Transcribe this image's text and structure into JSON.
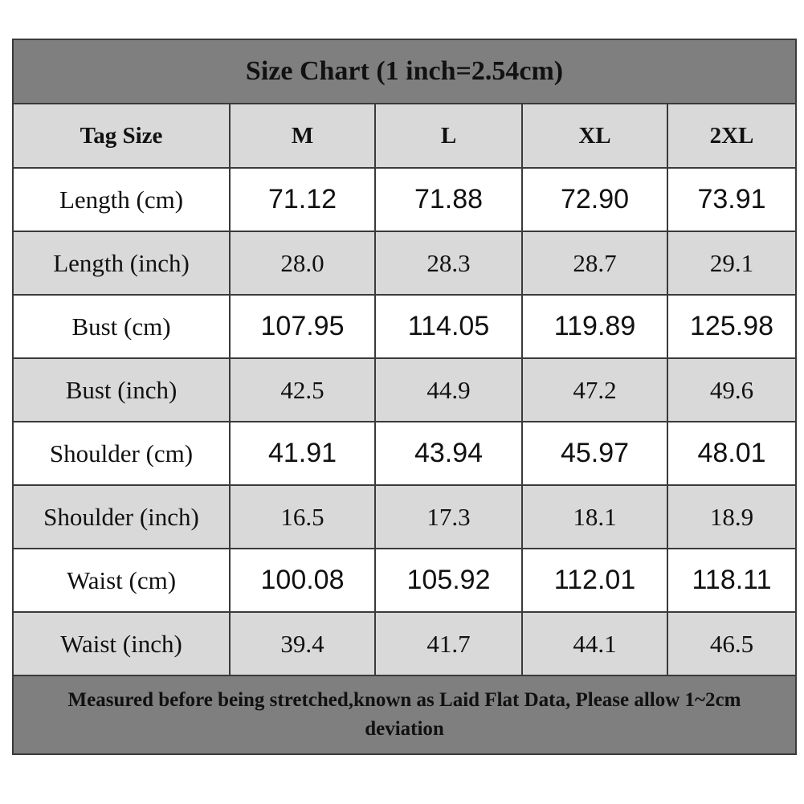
{
  "header": {
    "title": "Size Chart (1 inch=2.54cm)"
  },
  "table": {
    "columns": [
      "Tag Size",
      "M",
      "L",
      "XL",
      "2XL"
    ],
    "rows": [
      [
        "Length (cm)",
        "71.12",
        "71.88",
        "72.90",
        "73.91"
      ],
      [
        "Length (inch)",
        "28.0",
        "28.3",
        "28.7",
        "29.1"
      ],
      [
        "Bust (cm)",
        "107.95",
        "114.05",
        "119.89",
        "125.98"
      ],
      [
        "Bust (inch)",
        "42.5",
        "44.9",
        "47.2",
        "49.6"
      ],
      [
        "Shoulder (cm)",
        "41.91",
        "43.94",
        "45.97",
        "48.01"
      ],
      [
        "Shoulder (inch)",
        "16.5",
        "17.3",
        "18.1",
        "18.9"
      ],
      [
        "Waist (cm)",
        "100.08",
        "105.92",
        "112.01",
        "118.11"
      ],
      [
        "Waist (inch)",
        "39.4",
        "41.7",
        "44.1",
        "46.5"
      ]
    ]
  },
  "footer": {
    "text": "Measured before being stretched,known as Laid Flat Data, Please allow 1~2cm deviation"
  }
}
